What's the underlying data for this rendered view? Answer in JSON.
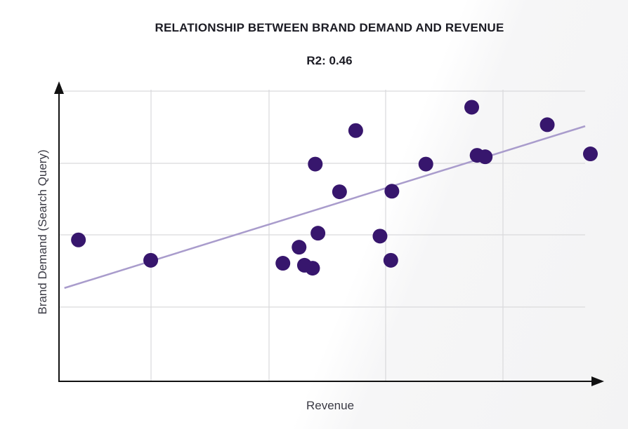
{
  "chart_data": {
    "type": "scatter",
    "title": "RELATIONSHIP BETWEEN BRAND DEMAND AND REVENUE",
    "subtitle": "R2: 0.46",
    "xlabel": "Revenue",
    "ylabel": "Brand Demand (Search Query)",
    "xlim": [
      0,
      100
    ],
    "ylim": [
      0,
      100
    ],
    "grid": true,
    "axis_ticks_labeled": false,
    "colors": {
      "point": "#37166d",
      "trend": "#a99ccc",
      "grid": "#d9d9dc",
      "axis": "#111111"
    },
    "points": [
      {
        "x": 3.6,
        "y": 48.5
      },
      {
        "x": 17.0,
        "y": 41.5
      },
      {
        "x": 41.5,
        "y": 40.5
      },
      {
        "x": 45.5,
        "y": 39.8
      },
      {
        "x": 47.0,
        "y": 38.8
      },
      {
        "x": 44.5,
        "y": 46.0
      },
      {
        "x": 48.0,
        "y": 50.8
      },
      {
        "x": 47.5,
        "y": 74.5
      },
      {
        "x": 52.0,
        "y": 65.0
      },
      {
        "x": 55.0,
        "y": 86.0
      },
      {
        "x": 59.5,
        "y": 49.8
      },
      {
        "x": 61.5,
        "y": 41.5
      },
      {
        "x": 61.7,
        "y": 65.2
      },
      {
        "x": 68.0,
        "y": 74.5
      },
      {
        "x": 76.5,
        "y": 94.0
      },
      {
        "x": 77.5,
        "y": 77.5
      },
      {
        "x": 79.0,
        "y": 77.0
      },
      {
        "x": 90.5,
        "y": 88.0
      },
      {
        "x": 98.5,
        "y": 78.0
      }
    ],
    "trendline": {
      "x": [
        1,
        101
      ],
      "y": [
        32,
        87.5
      ]
    }
  }
}
